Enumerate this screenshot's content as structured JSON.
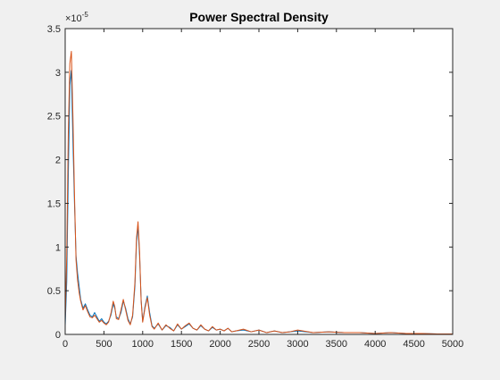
{
  "chart_data": {
    "type": "line",
    "title": "Power Spectral Density",
    "xlabel": "",
    "ylabel": "",
    "xlim": [
      0,
      5000
    ],
    "ylim": [
      0,
      3.5
    ],
    "y_exponent_label": "×10",
    "y_exponent_value": "-5",
    "x_ticks": [
      0,
      500,
      1000,
      1500,
      2000,
      2500,
      3000,
      3500,
      4000,
      4500,
      5000
    ],
    "x_tick_labels": [
      "0",
      "500",
      "1000",
      "1500",
      "2000",
      "2500",
      "3000",
      "3500",
      "4000",
      "4500",
      "5000"
    ],
    "y_ticks": [
      0,
      0.5,
      1,
      1.5,
      2,
      2.5,
      3,
      3.5
    ],
    "y_tick_labels": [
      "0",
      "0.5",
      "1",
      "1.5",
      "2",
      "2.5",
      "3",
      "3.5"
    ],
    "grid": false,
    "background_color": "#ffffff",
    "figure_color": "#f0f0f0",
    "series": [
      {
        "color": "#0072bd",
        "x": [
          0,
          20,
          40,
          60,
          80,
          100,
          120,
          140,
          160,
          180,
          200,
          230,
          260,
          290,
          320,
          350,
          380,
          410,
          440,
          470,
          500,
          530,
          560,
          590,
          620,
          640,
          660,
          690,
          720,
          750,
          780,
          810,
          840,
          870,
          900,
          920,
          940,
          960,
          980,
          1000,
          1030,
          1060,
          1090,
          1120,
          1150,
          1200,
          1250,
          1300,
          1350,
          1400,
          1450,
          1500,
          1550,
          1600,
          1650,
          1700,
          1750,
          1800,
          1850,
          1900,
          1950,
          2000,
          2050,
          2100,
          2150,
          2200,
          2300,
          2400,
          2500,
          2600,
          2700,
          2800,
          2900,
          3000,
          3200,
          3400,
          3600,
          3800,
          4000,
          4200,
          4400,
          4600,
          4800,
          5000
        ],
        "y": [
          0.1,
          0.6,
          1.8,
          2.85,
          3.02,
          2.2,
          1.5,
          0.9,
          0.7,
          0.55,
          0.4,
          0.3,
          0.35,
          0.28,
          0.22,
          0.2,
          0.25,
          0.2,
          0.15,
          0.18,
          0.14,
          0.12,
          0.15,
          0.22,
          0.35,
          0.3,
          0.2,
          0.18,
          0.25,
          0.38,
          0.3,
          0.18,
          0.12,
          0.2,
          0.55,
          1.05,
          1.24,
          0.9,
          0.4,
          0.15,
          0.32,
          0.44,
          0.25,
          0.1,
          0.07,
          0.12,
          0.05,
          0.1,
          0.08,
          0.04,
          0.11,
          0.06,
          0.09,
          0.12,
          0.07,
          0.05,
          0.1,
          0.06,
          0.04,
          0.08,
          0.05,
          0.06,
          0.04,
          0.07,
          0.03,
          0.04,
          0.05,
          0.03,
          0.05,
          0.02,
          0.04,
          0.02,
          0.03,
          0.04,
          0.02,
          0.03,
          0.02,
          0.02,
          0.01,
          0.02,
          0.01,
          0.01,
          0.005,
          0.005
        ]
      },
      {
        "color": "#d95319",
        "x": [
          0,
          20,
          40,
          60,
          80,
          100,
          120,
          140,
          160,
          180,
          200,
          230,
          260,
          290,
          320,
          350,
          380,
          410,
          440,
          470,
          500,
          530,
          560,
          590,
          620,
          640,
          660,
          690,
          720,
          750,
          780,
          810,
          840,
          870,
          900,
          920,
          940,
          960,
          980,
          1000,
          1030,
          1060,
          1090,
          1120,
          1150,
          1200,
          1250,
          1300,
          1350,
          1400,
          1450,
          1500,
          1550,
          1600,
          1650,
          1700,
          1750,
          1800,
          1850,
          1900,
          1950,
          2000,
          2050,
          2100,
          2150,
          2200,
          2300,
          2400,
          2500,
          2600,
          2700,
          2800,
          2900,
          3000,
          3200,
          3400,
          3600,
          3800,
          4000,
          4200,
          4400,
          4600,
          4800,
          5000
        ],
        "y": [
          0.15,
          0.9,
          2.3,
          3.1,
          3.24,
          2.5,
          1.6,
          0.85,
          0.62,
          0.48,
          0.38,
          0.28,
          0.33,
          0.26,
          0.2,
          0.19,
          0.22,
          0.18,
          0.14,
          0.16,
          0.13,
          0.11,
          0.14,
          0.24,
          0.38,
          0.32,
          0.18,
          0.17,
          0.28,
          0.4,
          0.28,
          0.16,
          0.11,
          0.22,
          0.6,
          1.1,
          1.29,
          0.95,
          0.38,
          0.14,
          0.3,
          0.42,
          0.22,
          0.09,
          0.06,
          0.13,
          0.05,
          0.11,
          0.07,
          0.04,
          0.12,
          0.06,
          0.1,
          0.13,
          0.07,
          0.05,
          0.11,
          0.06,
          0.04,
          0.09,
          0.05,
          0.06,
          0.04,
          0.07,
          0.03,
          0.04,
          0.06,
          0.03,
          0.05,
          0.02,
          0.04,
          0.02,
          0.03,
          0.05,
          0.02,
          0.03,
          0.02,
          0.02,
          0.01,
          0.02,
          0.01,
          0.01,
          0.005,
          0.005
        ]
      }
    ]
  }
}
